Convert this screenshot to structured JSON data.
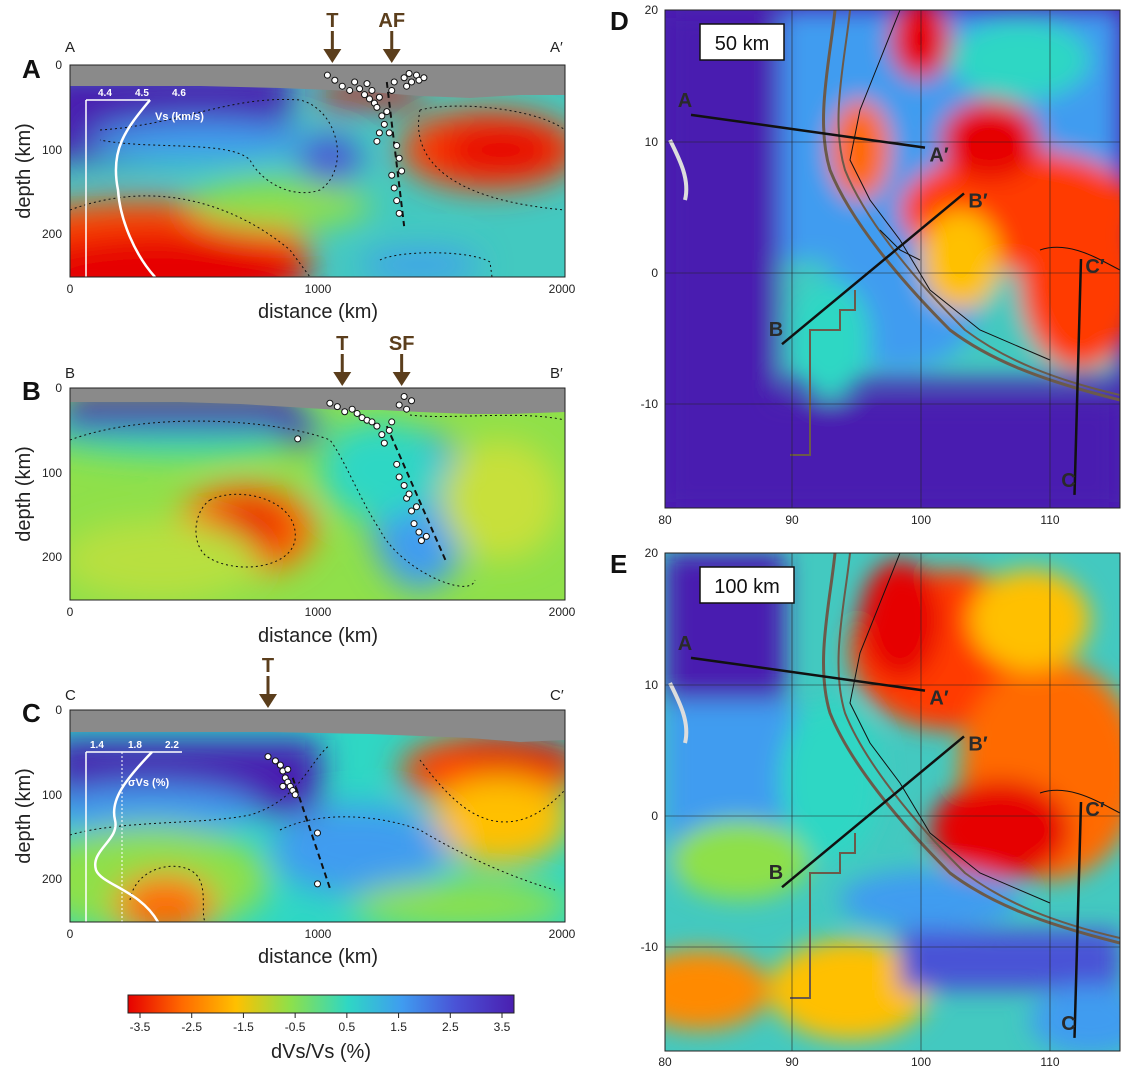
{
  "chart_data": [
    {
      "id": "A",
      "type": "heatmap",
      "panel_letter": "A",
      "left_label": "A",
      "right_label": "A′",
      "xlabel": "distance (km)",
      "ylabel": "depth (km)",
      "xlim": [
        0,
        2000
      ],
      "ylim": [
        250,
        0
      ],
      "xticks": [
        "0",
        "1000",
        "2000"
      ],
      "yticks": [
        "0",
        "100",
        "200"
      ],
      "markers": [
        {
          "label": "T",
          "x": 1060
        },
        {
          "label": "AF",
          "x": 1300
        }
      ],
      "inset": {
        "label": "Vs (km/s)",
        "ticks": [
          "4.4",
          "4.5",
          "4.6"
        ]
      },
      "slab_line": [
        [
          1280,
          20
        ],
        [
          1350,
          190
        ]
      ],
      "events": [
        [
          1040,
          12
        ],
        [
          1070,
          18
        ],
        [
          1100,
          25
        ],
        [
          1130,
          30
        ],
        [
          1150,
          20
        ],
        [
          1170,
          28
        ],
        [
          1190,
          35
        ],
        [
          1200,
          22
        ],
        [
          1210,
          40
        ],
        [
          1220,
          30
        ],
        [
          1230,
          45
        ],
        [
          1240,
          50
        ],
        [
          1250,
          38
        ],
        [
          1260,
          60
        ],
        [
          1270,
          70
        ],
        [
          1280,
          55
        ],
        [
          1290,
          80
        ],
        [
          1300,
          30
        ],
        [
          1310,
          20
        ],
        [
          1320,
          95
        ],
        [
          1330,
          110
        ],
        [
          1340,
          125
        ],
        [
          1300,
          130
        ],
        [
          1310,
          145
        ],
        [
          1320,
          160
        ],
        [
          1330,
          175
        ],
        [
          1350,
          15
        ],
        [
          1360,
          25
        ],
        [
          1370,
          10
        ],
        [
          1380,
          20
        ],
        [
          1400,
          12
        ],
        [
          1410,
          18
        ],
        [
          1430,
          15
        ],
        [
          1250,
          80
        ],
        [
          1240,
          90
        ]
      ]
    },
    {
      "id": "B",
      "type": "heatmap",
      "panel_letter": "B",
      "left_label": "B",
      "right_label": "B′",
      "xlabel": "distance (km)",
      "ylabel": "depth (km)",
      "xlim": [
        0,
        2000
      ],
      "ylim": [
        250,
        0
      ],
      "xticks": [
        "0",
        "1000",
        "2000"
      ],
      "yticks": [
        "0",
        "100",
        "200"
      ],
      "markers": [
        {
          "label": "T",
          "x": 1100
        },
        {
          "label": "SF",
          "x": 1340
        }
      ],
      "slab_line": [
        [
          1280,
          45
        ],
        [
          1520,
          205
        ]
      ],
      "events": [
        [
          1050,
          18
        ],
        [
          1080,
          22
        ],
        [
          1110,
          28
        ],
        [
          1140,
          25
        ],
        [
          1160,
          30
        ],
        [
          1180,
          35
        ],
        [
          1200,
          38
        ],
        [
          1220,
          40
        ],
        [
          1240,
          45
        ],
        [
          1260,
          55
        ],
        [
          1270,
          65
        ],
        [
          1290,
          50
        ],
        [
          1300,
          40
        ],
        [
          1330,
          20
        ],
        [
          1350,
          10
        ],
        [
          1360,
          25
        ],
        [
          1380,
          15
        ],
        [
          1320,
          90
        ],
        [
          1330,
          105
        ],
        [
          1350,
          115
        ],
        [
          1360,
          130
        ],
        [
          1380,
          145
        ],
        [
          1390,
          160
        ],
        [
          1410,
          170
        ],
        [
          1420,
          180
        ],
        [
          1440,
          175
        ],
        [
          1400,
          140
        ],
        [
          1370,
          125
        ],
        [
          920,
          60
        ]
      ]
    },
    {
      "id": "C",
      "type": "heatmap",
      "panel_letter": "C",
      "left_label": "C",
      "right_label": "C′",
      "xlabel": "distance (km)",
      "ylabel": "depth (km)",
      "xlim": [
        0,
        2000
      ],
      "ylim": [
        250,
        0
      ],
      "xticks": [
        "0",
        "1000",
        "2000"
      ],
      "yticks": [
        "0",
        "100",
        "200"
      ],
      "markers": [
        {
          "label": "T",
          "x": 800
        }
      ],
      "inset": {
        "label": "σVs (%)",
        "ticks": [
          "1.4",
          "1.8",
          "2.2"
        ]
      },
      "slab_line": [
        [
          900,
          80
        ],
        [
          1050,
          210
        ]
      ],
      "events": [
        [
          800,
          55
        ],
        [
          830,
          60
        ],
        [
          850,
          65
        ],
        [
          860,
          72
        ],
        [
          870,
          80
        ],
        [
          880,
          85
        ],
        [
          890,
          90
        ],
        [
          900,
          95
        ],
        [
          910,
          100
        ],
        [
          880,
          70
        ],
        [
          860,
          90
        ],
        [
          1000,
          145
        ],
        [
          1000,
          205
        ]
      ]
    },
    {
      "id": "D",
      "type": "heatmap",
      "panel_letter": "D",
      "title": "50 km",
      "xlim": [
        80,
        115
      ],
      "ylim": [
        -18,
        20
      ],
      "xticks": [
        "80",
        "90",
        "100",
        "110"
      ],
      "yticks": [
        "20",
        "10",
        "0",
        "-10"
      ],
      "profiles": [
        {
          "start": "A",
          "end": "A′",
          "from": [
            82,
            12
          ],
          "to": [
            100,
            9.5
          ]
        },
        {
          "start": "B",
          "end": "B′",
          "from": [
            89,
            -5.5
          ],
          "to": [
            103,
            6
          ]
        },
        {
          "start": "C",
          "end": "C′",
          "from": [
            111.5,
            -17
          ],
          "to": [
            112,
            1
          ]
        }
      ]
    },
    {
      "id": "E",
      "type": "heatmap",
      "panel_letter": "E",
      "title": "100 km",
      "xlim": [
        80,
        115
      ],
      "ylim": [
        -18,
        20
      ],
      "xticks": [
        "80",
        "90",
        "100",
        "110"
      ],
      "yticks": [
        "20",
        "10",
        "0",
        "-10"
      ],
      "profiles": [
        {
          "start": "A",
          "end": "A′",
          "from": [
            82,
            12
          ],
          "to": [
            100,
            9.5
          ]
        },
        {
          "start": "B",
          "end": "B′",
          "from": [
            89,
            -5.5
          ],
          "to": [
            103,
            6
          ]
        },
        {
          "start": "C",
          "end": "C′",
          "from": [
            111.5,
            -17
          ],
          "to": [
            112,
            1
          ]
        }
      ]
    }
  ],
  "colorbar": {
    "label": "dVs/Vs (%)",
    "ticks": [
      "-3.5",
      "-2.5",
      "-1.5",
      "-0.5",
      "0.5",
      "1.5",
      "2.5",
      "3.5"
    ],
    "colors": [
      "#e60000",
      "#ff8000",
      "#ffd000",
      "#8ee04a",
      "#2fd7c4",
      "#3f9cf0",
      "#4a52d6",
      "#4a1fb0"
    ]
  }
}
